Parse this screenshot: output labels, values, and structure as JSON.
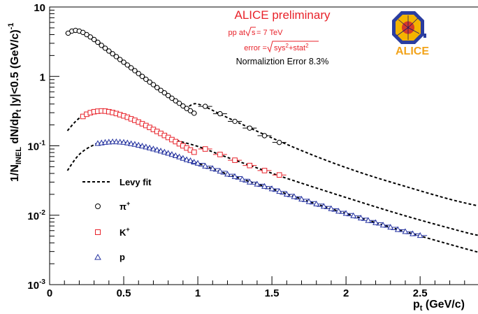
{
  "chart_data": {
    "type": "scatter",
    "title": "",
    "xlabel": {
      "main": "p",
      "sub": "t",
      "rest": " (GeV/c)"
    },
    "ylabel": {
      "parts": [
        "1/N",
        "INEL",
        " dN/dp",
        "t",
        " |y|<0.5 (GeV/c)",
        "-1"
      ]
    },
    "x_range": [
      0,
      2.9
    ],
    "y_range": [
      0.001,
      10
    ],
    "y_scale": "log",
    "grid": false,
    "x_ticks": [
      {
        "value": 0,
        "label": "0"
      },
      {
        "value": 0.5,
        "label": "0.5"
      },
      {
        "value": 1,
        "label": "1"
      },
      {
        "value": 1.5,
        "label": "1.5"
      },
      {
        "value": 2,
        "label": "2"
      },
      {
        "value": 2.5,
        "label": "2.5"
      }
    ],
    "y_ticks": [
      {
        "value": 0.001,
        "base": "10",
        "exp": "-3"
      },
      {
        "value": 0.01,
        "base": "10",
        "exp": "-2"
      },
      {
        "value": 0.1,
        "base": "10",
        "exp": "-1"
      },
      {
        "value": 1,
        "base": "1",
        "exp": ""
      },
      {
        "value": 10,
        "base": "10",
        "exp": ""
      }
    ],
    "annotations": {
      "title": "ALICE preliminary",
      "energy_prefix": "pp at ",
      "energy_root": "s",
      "energy_suffix": " = 7 TeV",
      "error_prefix": "error =",
      "error_root_a": "sys",
      "error_root_sup": "2",
      "error_root_b": "+stat",
      "normalization": "Normaliztion Error 8.3%"
    },
    "logo_text": "ALICE",
    "legend": {
      "placement": "bottom-left",
      "fit_label": "Levy fit",
      "entries": [
        {
          "symbol": "circle",
          "base": "π",
          "sup": "+"
        },
        {
          "symbol": "square",
          "base": "K",
          "sup": "+"
        },
        {
          "symbol": "triangle",
          "base": "p",
          "sup": ""
        }
      ]
    },
    "series": [
      {
        "species": "pi+",
        "marker": "circle",
        "color": "#000000",
        "x": [
          0.125,
          0.15,
          0.175,
          0.2,
          0.225,
          0.25,
          0.275,
          0.3,
          0.325,
          0.35,
          0.375,
          0.4,
          0.425,
          0.45,
          0.475,
          0.5,
          0.525,
          0.55,
          0.575,
          0.6,
          0.625,
          0.65,
          0.675,
          0.7,
          0.725,
          0.75,
          0.775,
          0.8,
          0.825,
          0.85,
          0.875,
          0.9,
          0.925,
          0.95,
          0.975,
          1.05,
          1.15,
          1.25,
          1.35,
          1.45,
          1.55
        ],
        "y": [
          4.2,
          4.5,
          4.6,
          4.5,
          4.3,
          4.0,
          3.7,
          3.4,
          3.1,
          2.8,
          2.55,
          2.32,
          2.12,
          1.93,
          1.75,
          1.6,
          1.46,
          1.33,
          1.21,
          1.1,
          1.0,
          0.91,
          0.83,
          0.76,
          0.69,
          0.63,
          0.58,
          0.53,
          0.485,
          0.445,
          0.41,
          0.375,
          0.345,
          0.32,
          0.295,
          0.37,
          0.29,
          0.225,
          0.18,
          0.14,
          0.112
        ]
      },
      {
        "species": "K+",
        "marker": "square",
        "color": "#e8222a",
        "x": [
          0.225,
          0.25,
          0.275,
          0.3,
          0.325,
          0.35,
          0.375,
          0.4,
          0.425,
          0.45,
          0.475,
          0.5,
          0.525,
          0.55,
          0.575,
          0.6,
          0.625,
          0.65,
          0.675,
          0.7,
          0.725,
          0.75,
          0.775,
          0.8,
          0.825,
          0.85,
          0.875,
          0.9,
          0.925,
          0.95,
          0.975,
          1.05,
          1.15,
          1.25,
          1.35,
          1.45,
          1.55
        ],
        "y": [
          0.265,
          0.285,
          0.3,
          0.31,
          0.315,
          0.318,
          0.316,
          0.31,
          0.302,
          0.292,
          0.281,
          0.27,
          0.258,
          0.245,
          0.233,
          0.22,
          0.208,
          0.196,
          0.184,
          0.172,
          0.161,
          0.151,
          0.141,
          0.132,
          0.123,
          0.115,
          0.107,
          0.1,
          0.093,
          0.087,
          0.081,
          0.09,
          0.075,
          0.062,
          0.052,
          0.044,
          0.038
        ]
      },
      {
        "species": "p",
        "marker": "triangle",
        "color": "#2432a0",
        "x": [
          0.325,
          0.35,
          0.375,
          0.4,
          0.425,
          0.45,
          0.475,
          0.5,
          0.525,
          0.55,
          0.575,
          0.6,
          0.625,
          0.65,
          0.675,
          0.7,
          0.725,
          0.75,
          0.775,
          0.8,
          0.825,
          0.85,
          0.875,
          0.9,
          0.925,
          0.95,
          0.975,
          1.0,
          1.05,
          1.1,
          1.15,
          1.2,
          1.25,
          1.3,
          1.35,
          1.4,
          1.45,
          1.5,
          1.55,
          1.6,
          1.65,
          1.7,
          1.75,
          1.8,
          1.85,
          1.9,
          1.95,
          2.0,
          2.05,
          2.1,
          2.15,
          2.2,
          2.25,
          2.3,
          2.35,
          2.4,
          2.45,
          2.5
        ],
        "y": [
          0.108,
          0.11,
          0.112,
          0.113,
          0.114,
          0.114,
          0.113,
          0.112,
          0.11,
          0.107,
          0.105,
          0.102,
          0.099,
          0.096,
          0.093,
          0.09,
          0.087,
          0.084,
          0.081,
          0.078,
          0.075,
          0.072,
          0.069,
          0.066,
          0.063,
          0.061,
          0.058,
          0.056,
          0.051,
          0.047,
          0.043,
          0.039,
          0.036,
          0.033,
          0.03,
          0.028,
          0.026,
          0.024,
          0.022,
          0.02,
          0.0185,
          0.017,
          0.0157,
          0.0145,
          0.0134,
          0.0124,
          0.0114,
          0.0106,
          0.0098,
          0.0091,
          0.0084,
          0.0078,
          0.0072,
          0.0067,
          0.0062,
          0.0058,
          0.0054,
          0.0051
        ]
      }
    ],
    "fits": [
      {
        "species": "pi+",
        "x": [
          0.12,
          0.15,
          0.2,
          0.3,
          0.4,
          0.5,
          0.7,
          0.9,
          1.0,
          1.2,
          1.5,
          1.8,
          2.1,
          2.4,
          2.7,
          2.9
        ],
        "y": [
          4.25,
          4.5,
          4.5,
          3.4,
          2.32,
          1.6,
          0.76,
          0.375,
          0.4,
          0.255,
          0.13,
          0.07,
          0.041,
          0.026,
          0.017,
          0.0135
        ]
      },
      {
        "species": "K+",
        "x": [
          0.12,
          0.2,
          0.3,
          0.4,
          0.5,
          0.6,
          0.8,
          1.0,
          1.2,
          1.4,
          1.6,
          2.0,
          2.4,
          2.8,
          2.9
        ],
        "y": [
          0.165,
          0.25,
          0.31,
          0.31,
          0.27,
          0.22,
          0.132,
          0.098,
          0.068,
          0.048,
          0.034,
          0.018,
          0.0098,
          0.0057,
          0.0051
        ]
      },
      {
        "species": "p",
        "x": [
          0.12,
          0.2,
          0.3,
          0.4,
          0.5,
          0.6,
          0.8,
          1.0,
          1.2,
          1.5,
          1.8,
          2.1,
          2.4,
          2.7,
          2.9
        ],
        "y": [
          0.044,
          0.075,
          0.103,
          0.113,
          0.112,
          0.102,
          0.078,
          0.056,
          0.039,
          0.024,
          0.0145,
          0.0091,
          0.0058,
          0.0038,
          0.0029
        ]
      }
    ]
  }
}
